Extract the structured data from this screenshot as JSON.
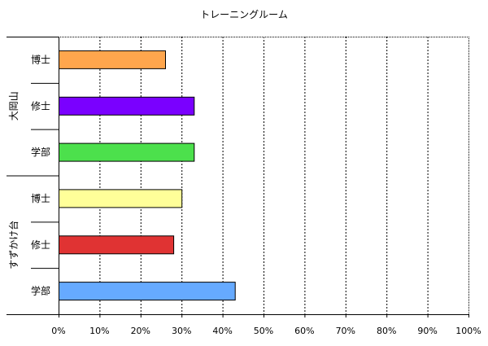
{
  "chart_data": {
    "type": "bar",
    "orientation": "horizontal",
    "title": "トレーニングルーム",
    "groups": [
      {
        "name": "大岡山",
        "bars": [
          {
            "label": "博士",
            "value": 26,
            "color": "#ffa64d"
          },
          {
            "label": "修士",
            "value": 33,
            "color": "#7a00ff"
          },
          {
            "label": "学部",
            "value": 33,
            "color": "#4ce04c"
          }
        ]
      },
      {
        "name": "すずかけ台",
        "bars": [
          {
            "label": "博士",
            "value": 30,
            "color": "#ffff99"
          },
          {
            "label": "修士",
            "value": 28,
            "color": "#e03333"
          },
          {
            "label": "学部",
            "value": 43,
            "color": "#66aaff"
          }
        ]
      }
    ],
    "xlim": [
      0,
      100
    ],
    "xticks": [
      "0%",
      "10%",
      "20%",
      "30%",
      "40%",
      "50%",
      "60%",
      "70%",
      "80%",
      "90%",
      "100%"
    ],
    "grid": "vertical dashed",
    "legend": "none"
  }
}
